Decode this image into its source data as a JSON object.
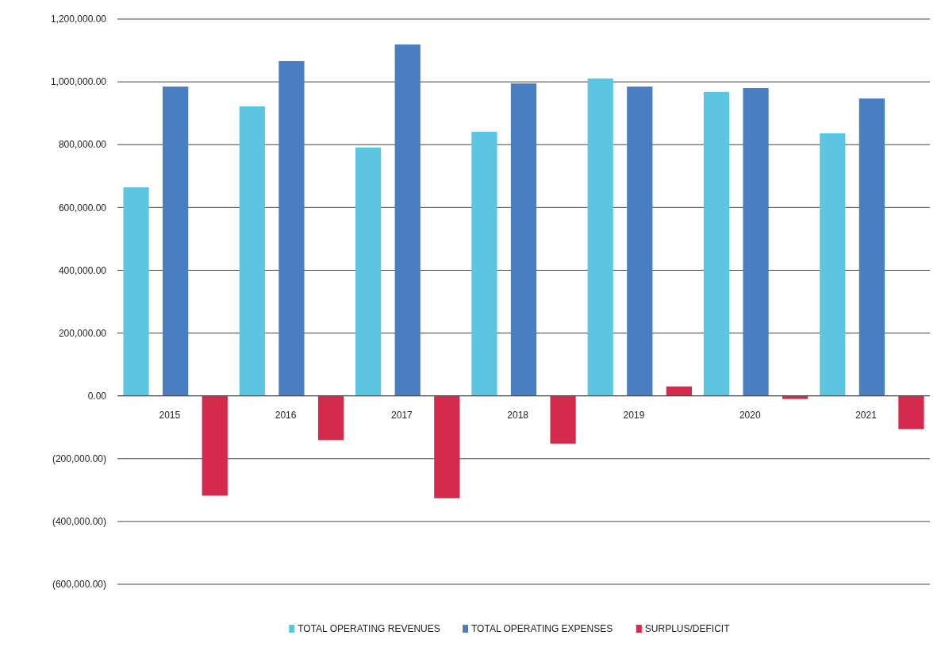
{
  "chart_data": {
    "type": "bar",
    "categories": [
      "2015",
      "2016",
      "2017",
      "2018",
      "2019",
      "2020",
      "2021"
    ],
    "series": [
      {
        "name": "TOTAL OPERATING REVENUES",
        "color": "#5cc6e2",
        "values": [
          664000,
          922000,
          791000,
          841000,
          1011000,
          968000,
          836000
        ]
      },
      {
        "name": "TOTAL OPERATING EXPENSES",
        "color": "#4a7ec2",
        "values": [
          985000,
          1066000,
          1119000,
          995000,
          985000,
          980000,
          947000
        ]
      },
      {
        "name": "SURPLUS/DEFICIT",
        "color": "#d42b4c",
        "values": [
          -318000,
          -141000,
          -326000,
          -152000,
          30000,
          -10000,
          -106000
        ]
      }
    ],
    "ylim": [
      -600000,
      1200000
    ],
    "yticks": [
      {
        "value": -600000,
        "label": "(600,000.00)"
      },
      {
        "value": -400000,
        "label": "(400,000.00)"
      },
      {
        "value": -200000,
        "label": "(200,000.00)"
      },
      {
        "value": 0,
        "label": "0.00"
      },
      {
        "value": 200000,
        "label": "200,000.00"
      },
      {
        "value": 400000,
        "label": "400,000.00"
      },
      {
        "value": 600000,
        "label": "600,000.00"
      },
      {
        "value": 800000,
        "label": "800,000.00"
      },
      {
        "value": 1000000,
        "label": "1,000,000.00"
      },
      {
        "value": 1200000,
        "label": "1,200,000.00"
      }
    ],
    "grid": "y",
    "legend": "bottom"
  }
}
